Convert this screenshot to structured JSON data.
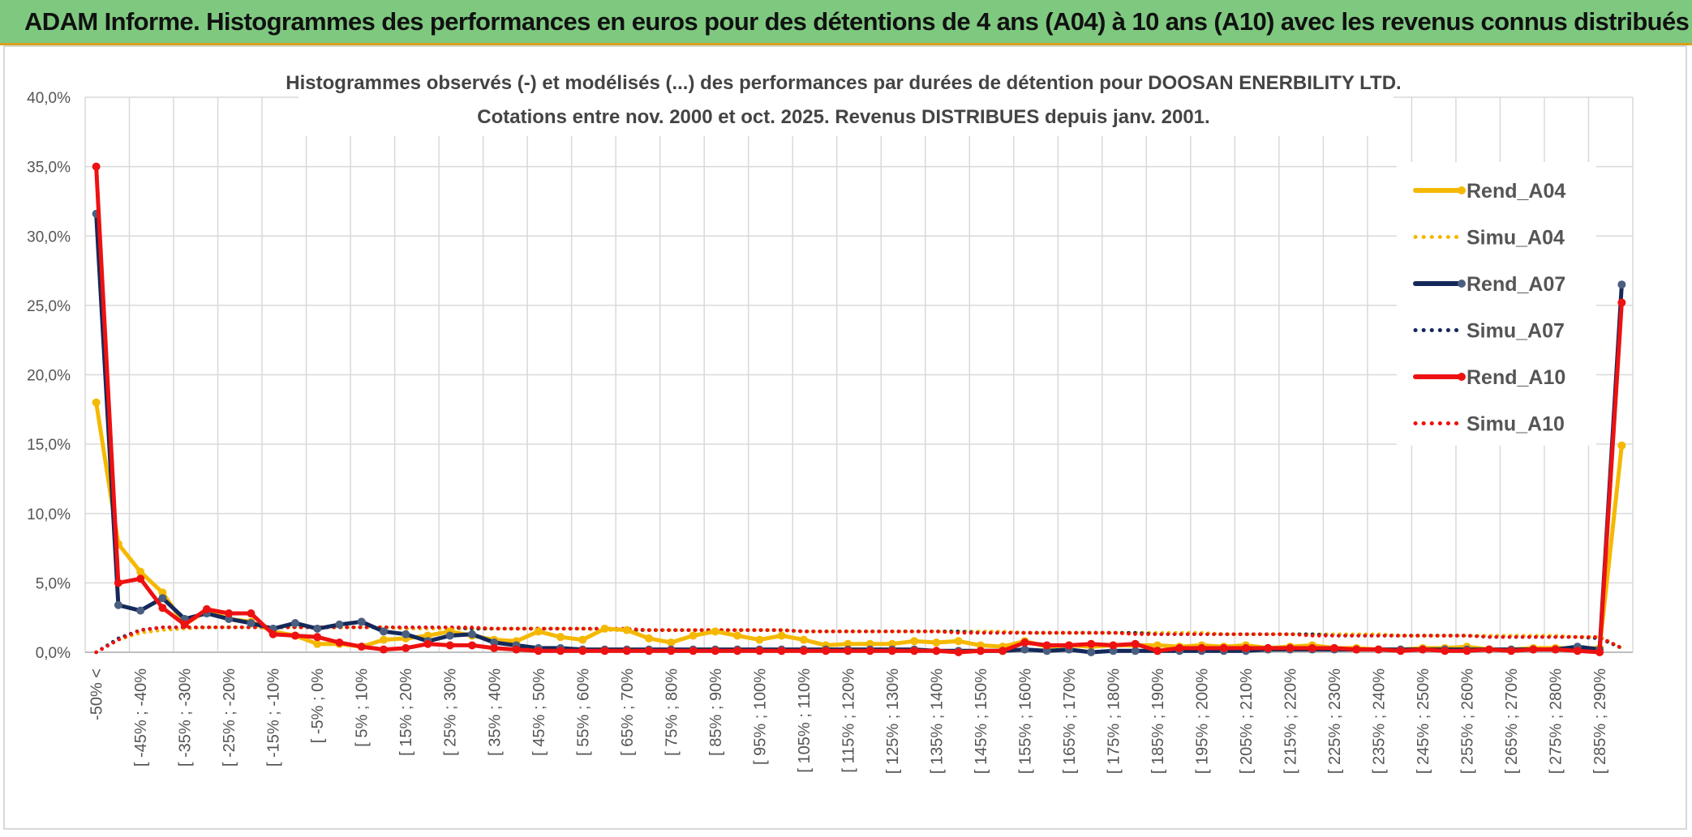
{
  "banner": {
    "title": "ADAM Informe. Histogrammes des performances en euros pour des détentions de 4 ans (A04) à 10 ans (A10) avec les revenus connus distribués"
  },
  "colors": {
    "banner_bg": "#7ec97f",
    "A04": "#f5b800",
    "A07": "#14295a",
    "A07_marker": "#4a5f80",
    "A10": "#ee1111",
    "grid": "#d9d9d9"
  },
  "chart_data": {
    "type": "line",
    "title": "Histogrammes observés (-) et modélisés (...) des performances par durées de détention pour DOOSAN ENERBILITY LTD.",
    "subtitle": "Cotations entre nov. 2000 et oct. 2025. Revenus DISTRIBUES depuis janv. 2001.",
    "ylim": [
      0,
      40
    ],
    "yticks": [
      "0,0%",
      "5,0%",
      "10,0%",
      "15,0%",
      "20,0%",
      "25,0%",
      "30,0%",
      "35,0%",
      "40,0%"
    ],
    "xtick_labels": [
      "-50% <",
      "[ -45% ; -40%",
      "[ -35% ; -30%",
      "[ -25% ; -20%",
      "[ -15% ; -10%",
      "[ -5% ; 0%",
      "[ 5% ; 10%",
      "[ 15% ; 20%",
      "[ 25% ; 30%",
      "[ 35% ; 40%",
      "[ 45% ; 50%",
      "[ 55% ; 60%",
      "[ 65% ; 70%",
      "[ 75% ; 80%",
      "[ 85% ; 90%",
      "[ 95% ; 100%",
      "[ 105% ; 110%",
      "[ 115% ; 120%",
      "[ 125% ; 130%",
      "[ 135% ; 140%",
      "[ 145% ; 150%",
      "[ 155% ; 160%",
      "[ 165% ; 170%",
      "[ 175% ; 180%",
      "[ 185% ; 190%",
      "[ 195% ; 200%",
      "[ 205% ; 210%",
      "[ 215% ; 220%",
      "[ 225% ; 230%",
      "[ 235% ; 240%",
      "[ 245% ; 250%",
      "[ 255% ; 260%",
      "[ 265% ; 270%",
      "[ 275% ; 280%",
      "[ 285% ; 290%"
    ],
    "n_categories": 70,
    "legend": [
      "Rend_A04",
      "Simu_A04",
      "Rend_A07",
      "Simu_A07",
      "Rend_A10",
      "Simu_A10"
    ],
    "series": [
      {
        "name": "Simu_A04",
        "style": "dotted",
        "color": "#f5b800",
        "values": [
          0.0,
          0.9,
          1.4,
          1.6,
          1.7,
          1.8,
          1.8,
          1.8,
          1.8,
          1.8,
          1.8,
          1.8,
          1.8,
          1.8,
          1.7,
          1.7,
          1.7,
          1.7,
          1.7,
          1.7,
          1.7,
          1.7,
          1.7,
          1.6,
          1.6,
          1.6,
          1.6,
          1.6,
          1.6,
          1.6,
          1.6,
          1.6,
          1.5,
          1.5,
          1.5,
          1.5,
          1.5,
          1.5,
          1.5,
          1.5,
          1.5,
          1.5,
          1.4,
          1.4,
          1.4,
          1.4,
          1.4,
          1.4,
          1.4,
          1.4,
          1.4,
          1.3,
          1.3,
          1.3,
          1.3,
          1.3,
          1.3,
          1.3,
          1.3,
          1.2,
          1.2,
          1.2,
          1.2,
          1.2,
          1.2,
          1.2,
          1.2,
          1.1,
          1.1,
          0.3
        ]
      },
      {
        "name": "Simu_A07",
        "style": "dotted",
        "color": "#14295a",
        "values": [
          0.0,
          1.0,
          1.6,
          1.8,
          1.8,
          1.8,
          1.8,
          1.8,
          1.8,
          1.8,
          1.8,
          1.8,
          1.8,
          1.8,
          1.8,
          1.8,
          1.8,
          1.7,
          1.7,
          1.7,
          1.7,
          1.7,
          1.7,
          1.7,
          1.6,
          1.6,
          1.6,
          1.6,
          1.6,
          1.6,
          1.6,
          1.6,
          1.5,
          1.5,
          1.5,
          1.5,
          1.5,
          1.5,
          1.5,
          1.5,
          1.4,
          1.4,
          1.4,
          1.4,
          1.4,
          1.4,
          1.4,
          1.4,
          1.3,
          1.3,
          1.3,
          1.3,
          1.3,
          1.3,
          1.3,
          1.3,
          1.2,
          1.2,
          1.2,
          1.2,
          1.2,
          1.2,
          1.2,
          1.1,
          1.1,
          1.1,
          1.1,
          1.1,
          1.0,
          0.3
        ]
      },
      {
        "name": "Simu_A10",
        "style": "dotted",
        "color": "#ee1111",
        "values": [
          0.0,
          0.9,
          1.6,
          1.8,
          1.8,
          1.8,
          1.8,
          1.8,
          1.8,
          1.8,
          1.8,
          1.8,
          1.8,
          1.8,
          1.8,
          1.8,
          1.8,
          1.8,
          1.7,
          1.7,
          1.7,
          1.7,
          1.7,
          1.7,
          1.7,
          1.6,
          1.6,
          1.6,
          1.6,
          1.6,
          1.6,
          1.6,
          1.5,
          1.5,
          1.5,
          1.5,
          1.5,
          1.5,
          1.5,
          1.4,
          1.4,
          1.4,
          1.4,
          1.4,
          1.4,
          1.4,
          1.4,
          1.3,
          1.3,
          1.3,
          1.3,
          1.3,
          1.3,
          1.3,
          1.3,
          1.2,
          1.2,
          1.2,
          1.2,
          1.2,
          1.2,
          1.2,
          1.2,
          1.1,
          1.1,
          1.1,
          1.1,
          1.1,
          1.1,
          0.3
        ]
      },
      {
        "name": "Rend_A04",
        "style": "solid",
        "color": "#f5b800",
        "values": [
          18.0,
          7.8,
          5.8,
          4.3,
          2.0,
          3.0,
          2.4,
          2.2,
          1.5,
          1.2,
          0.6,
          0.6,
          0.4,
          0.9,
          1.0,
          1.2,
          1.5,
          1.2,
          0.9,
          0.8,
          1.5,
          1.1,
          0.9,
          1.7,
          1.6,
          1.0,
          0.7,
          1.2,
          1.5,
          1.2,
          0.9,
          1.2,
          0.9,
          0.5,
          0.6,
          0.6,
          0.6,
          0.8,
          0.7,
          0.8,
          0.5,
          0.4,
          0.8,
          0.4,
          0.5,
          0.4,
          0.5,
          0.5,
          0.5,
          0.4,
          0.5,
          0.4,
          0.5,
          0.3,
          0.4,
          0.5,
          0.3,
          0.3,
          0.2,
          0.2,
          0.3,
          0.3,
          0.4,
          0.2,
          0.2,
          0.3,
          0.3,
          0.3,
          0.3,
          14.9
        ]
      },
      {
        "name": "Rend_A07",
        "style": "solid",
        "color": "#14295a",
        "marker": "#4a5f80",
        "values": [
          31.6,
          3.4,
          3.0,
          3.9,
          2.4,
          2.8,
          2.4,
          2.1,
          1.7,
          2.1,
          1.7,
          2.0,
          2.2,
          1.5,
          1.3,
          0.8,
          1.2,
          1.3,
          0.7,
          0.5,
          0.3,
          0.3,
          0.2,
          0.2,
          0.2,
          0.2,
          0.2,
          0.2,
          0.2,
          0.2,
          0.2,
          0.2,
          0.2,
          0.2,
          0.2,
          0.2,
          0.2,
          0.2,
          0.1,
          0.1,
          0.1,
          0.1,
          0.2,
          0.1,
          0.2,
          0.0,
          0.1,
          0.1,
          0.1,
          0.1,
          0.1,
          0.1,
          0.1,
          0.2,
          0.2,
          0.2,
          0.2,
          0.2,
          0.2,
          0.2,
          0.2,
          0.2,
          0.2,
          0.2,
          0.2,
          0.2,
          0.2,
          0.4,
          0.2,
          26.5
        ]
      },
      {
        "name": "Rend_A10",
        "style": "solid",
        "color": "#ee1111",
        "values": [
          35.0,
          5.0,
          5.3,
          3.2,
          2.0,
          3.1,
          2.8,
          2.8,
          1.3,
          1.2,
          1.1,
          0.7,
          0.4,
          0.2,
          0.3,
          0.6,
          0.5,
          0.5,
          0.3,
          0.2,
          0.1,
          0.1,
          0.1,
          0.1,
          0.1,
          0.1,
          0.1,
          0.1,
          0.1,
          0.1,
          0.1,
          0.1,
          0.1,
          0.1,
          0.1,
          0.1,
          0.1,
          0.1,
          0.1,
          0.0,
          0.1,
          0.1,
          0.7,
          0.5,
          0.5,
          0.6,
          0.5,
          0.6,
          0.1,
          0.3,
          0.3,
          0.3,
          0.3,
          0.3,
          0.3,
          0.3,
          0.3,
          0.2,
          0.2,
          0.1,
          0.2,
          0.1,
          0.1,
          0.2,
          0.1,
          0.2,
          0.2,
          0.1,
          0.0,
          25.2
        ]
      }
    ]
  }
}
